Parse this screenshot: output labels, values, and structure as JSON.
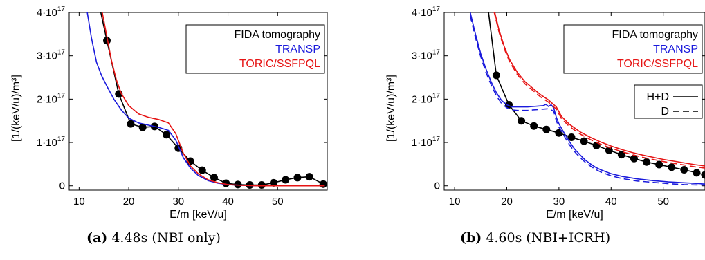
{
  "chart_data": [
    {
      "type": "line",
      "caption_letter": "(a)",
      "caption_text": "4.48s (NBI only)",
      "xlabel": "E/m [keV/u]",
      "ylabel": "[1/(keV/u)/m³]",
      "xlim": [
        8,
        60
      ],
      "ylim": [
        -0.1,
        4.0
      ],
      "y_scale_note": "values in units of 10^17",
      "x_ticks": [
        10,
        20,
        30,
        40,
        50
      ],
      "y_ticks": [
        {
          "value": 0,
          "mant": "0",
          "exp": ""
        },
        {
          "value": 1,
          "mant": "1·10",
          "exp": "17"
        },
        {
          "value": 2,
          "mant": "2·10",
          "exp": "17"
        },
        {
          "value": 3,
          "mant": "3·10",
          "exp": "17"
        },
        {
          "value": 4,
          "mant": "4·10",
          "exp": "17"
        }
      ],
      "legend": [
        {
          "label": "FIDA tomography",
          "color": "#000000"
        },
        {
          "label": "TRANSP",
          "color": "#1a1adc"
        },
        {
          "label": "TORIC/SSFPQL",
          "color": "#e61414"
        }
      ],
      "line_legend": [],
      "series": [
        {
          "name": "FIDA tomography",
          "color": "#000000",
          "markers": true,
          "dash": false,
          "x": [
            14,
            15.6,
            18.0,
            20.4,
            22.8,
            25.2,
            27.6,
            30.0,
            32.4,
            34.8,
            37.2,
            39.6,
            42.0,
            44.4,
            46.8,
            49.2,
            51.6,
            54.0,
            56.4,
            59.2
          ],
          "y": [
            4.2,
            3.35,
            2.12,
            1.43,
            1.35,
            1.37,
            1.18,
            0.87,
            0.57,
            0.36,
            0.19,
            0.06,
            0.03,
            0.02,
            0.02,
            0.07,
            0.14,
            0.19,
            0.21,
            0.04
          ]
        },
        {
          "name": "TRANSP",
          "color": "#1a1adc",
          "markers": false,
          "dash": false,
          "x": [
            11.5,
            12.5,
            13.5,
            14.5,
            15.5,
            17,
            18.5,
            20,
            22,
            24,
            26,
            28,
            29.5,
            31,
            32.5,
            34,
            36,
            38,
            40,
            43,
            46,
            50,
            55,
            59.5
          ],
          "y": [
            4.1,
            3.4,
            2.85,
            2.55,
            2.32,
            2.0,
            1.75,
            1.56,
            1.45,
            1.4,
            1.35,
            1.28,
            1.05,
            0.65,
            0.4,
            0.24,
            0.12,
            0.06,
            0.03,
            0.01,
            0.0,
            0.0,
            0.0,
            0.0
          ]
        },
        {
          "name": "TORIC/SSFPQL",
          "color": "#e61414",
          "markers": false,
          "dash": false,
          "x": [
            14.5,
            15.5,
            16.5,
            17.5,
            18.5,
            20,
            22,
            24,
            26,
            28,
            29.5,
            31,
            32.5,
            34,
            36,
            38,
            40,
            43,
            46,
            50,
            55,
            59.5
          ],
          "y": [
            4.1,
            3.5,
            2.9,
            2.45,
            2.13,
            1.85,
            1.66,
            1.58,
            1.53,
            1.45,
            1.2,
            0.75,
            0.45,
            0.28,
            0.14,
            0.07,
            0.03,
            0.01,
            0.0,
            0.0,
            0.0,
            0.0
          ]
        }
      ]
    },
    {
      "type": "line",
      "caption_letter": "(b)",
      "caption_text": "4.60s (NBI+ICRH)",
      "xlabel": "E/m [keV/u]",
      "ylabel": "[1/(keV/u)/m³]",
      "xlim": [
        8,
        58
      ],
      "ylim": [
        -0.1,
        4.0
      ],
      "y_scale_note": "values in units of 10^17",
      "x_ticks": [
        10,
        20,
        30,
        40,
        50
      ],
      "y_ticks": [
        {
          "value": 0,
          "mant": "0",
          "exp": ""
        },
        {
          "value": 1,
          "mant": "1·10",
          "exp": "17"
        },
        {
          "value": 2,
          "mant": "2·10",
          "exp": "17"
        },
        {
          "value": 3,
          "mant": "3·10",
          "exp": "17"
        },
        {
          "value": 4,
          "mant": "4·10",
          "exp": "17"
        }
      ],
      "legend": [
        {
          "label": "FIDA tomography",
          "color": "#000000"
        },
        {
          "label": "TRANSP",
          "color": "#1a1adc"
        },
        {
          "label": "TORIC/SSFPQL",
          "color": "#e61414"
        }
      ],
      "line_legend": [
        {
          "label": "H+D",
          "dash": false
        },
        {
          "label": "D",
          "dash": true
        }
      ],
      "series": [
        {
          "name": "FIDA tomography",
          "color": "#000000",
          "markers": true,
          "dash": false,
          "x": [
            16.3,
            18.0,
            20.4,
            22.8,
            25.2,
            27.6,
            30.0,
            32.4,
            34.8,
            37.2,
            39.6,
            42.0,
            44.4,
            46.8,
            49.2,
            51.6,
            54.0,
            56.4,
            58
          ],
          "y": [
            4.2,
            2.55,
            1.87,
            1.5,
            1.38,
            1.3,
            1.22,
            1.12,
            1.03,
            0.93,
            0.82,
            0.72,
            0.63,
            0.55,
            0.49,
            0.43,
            0.37,
            0.3,
            0.25
          ]
        },
        {
          "name": "TRANSP (H+D)",
          "color": "#1a1adc",
          "markers": false,
          "dash": false,
          "x": [
            13,
            14,
            15,
            16,
            17,
            18,
            19,
            20,
            21,
            22,
            23,
            24,
            25,
            26,
            27,
            27.5,
            28,
            28.5,
            29,
            29.5,
            30,
            31,
            32,
            33,
            34,
            35,
            36,
            37,
            38,
            40,
            42,
            45,
            48,
            51,
            54,
            57,
            58
          ],
          "y": [
            4.0,
            3.5,
            3.05,
            2.7,
            2.4,
            2.15,
            1.97,
            1.87,
            1.82,
            1.82,
            1.82,
            1.82,
            1.83,
            1.84,
            1.85,
            1.88,
            1.83,
            1.87,
            1.8,
            1.58,
            1.43,
            1.22,
            1.02,
            0.85,
            0.72,
            0.6,
            0.51,
            0.43,
            0.37,
            0.28,
            0.22,
            0.16,
            0.12,
            0.09,
            0.07,
            0.05,
            0.04
          ]
        },
        {
          "name": "TRANSP (D)",
          "color": "#1a1adc",
          "markers": false,
          "dash": true,
          "x": [
            13,
            14,
            15,
            16,
            17,
            18,
            19,
            20,
            21,
            22,
            23,
            24,
            25,
            26,
            27,
            28,
            29,
            29.5,
            30,
            31,
            32,
            33,
            34,
            35,
            36,
            37,
            38,
            40,
            42,
            45,
            48,
            51,
            54,
            57,
            58
          ],
          "y": [
            3.92,
            3.42,
            2.98,
            2.62,
            2.33,
            2.08,
            1.9,
            1.8,
            1.75,
            1.74,
            1.74,
            1.74,
            1.75,
            1.76,
            1.77,
            1.78,
            1.72,
            1.5,
            1.35,
            1.15,
            0.95,
            0.79,
            0.66,
            0.55,
            0.46,
            0.38,
            0.32,
            0.23,
            0.17,
            0.11,
            0.08,
            0.05,
            0.03,
            0.02,
            0.02
          ]
        },
        {
          "name": "TORIC/SSFPQL (H+D)",
          "color": "#e61414",
          "markers": false,
          "dash": false,
          "x": [
            17.5,
            18.5,
            19.5,
            20.5,
            22,
            23.5,
            25,
            26.5,
            28,
            29.5,
            30.5,
            32,
            34,
            36,
            38,
            40,
            42,
            44,
            46,
            48,
            50,
            52,
            54,
            56,
            58
          ],
          "y": [
            4.1,
            3.6,
            3.22,
            2.92,
            2.62,
            2.4,
            2.25,
            2.1,
            1.98,
            1.82,
            1.6,
            1.42,
            1.25,
            1.12,
            1.01,
            0.92,
            0.84,
            0.77,
            0.71,
            0.66,
            0.61,
            0.57,
            0.53,
            0.49,
            0.46
          ]
        },
        {
          "name": "TORIC/SSFPQL (D)",
          "color": "#e61414",
          "markers": false,
          "dash": true,
          "x": [
            17.5,
            18.5,
            19.5,
            20.5,
            22,
            23.5,
            25,
            26.5,
            28,
            29.5,
            30.5,
            32,
            34,
            36,
            38,
            40,
            42,
            44,
            46,
            48,
            50,
            52,
            54,
            56,
            58
          ],
          "y": [
            4.05,
            3.55,
            3.17,
            2.87,
            2.57,
            2.35,
            2.2,
            2.05,
            1.93,
            1.77,
            1.55,
            1.37,
            1.2,
            1.07,
            0.96,
            0.87,
            0.79,
            0.72,
            0.66,
            0.61,
            0.56,
            0.52,
            0.48,
            0.44,
            0.41
          ]
        }
      ]
    }
  ]
}
